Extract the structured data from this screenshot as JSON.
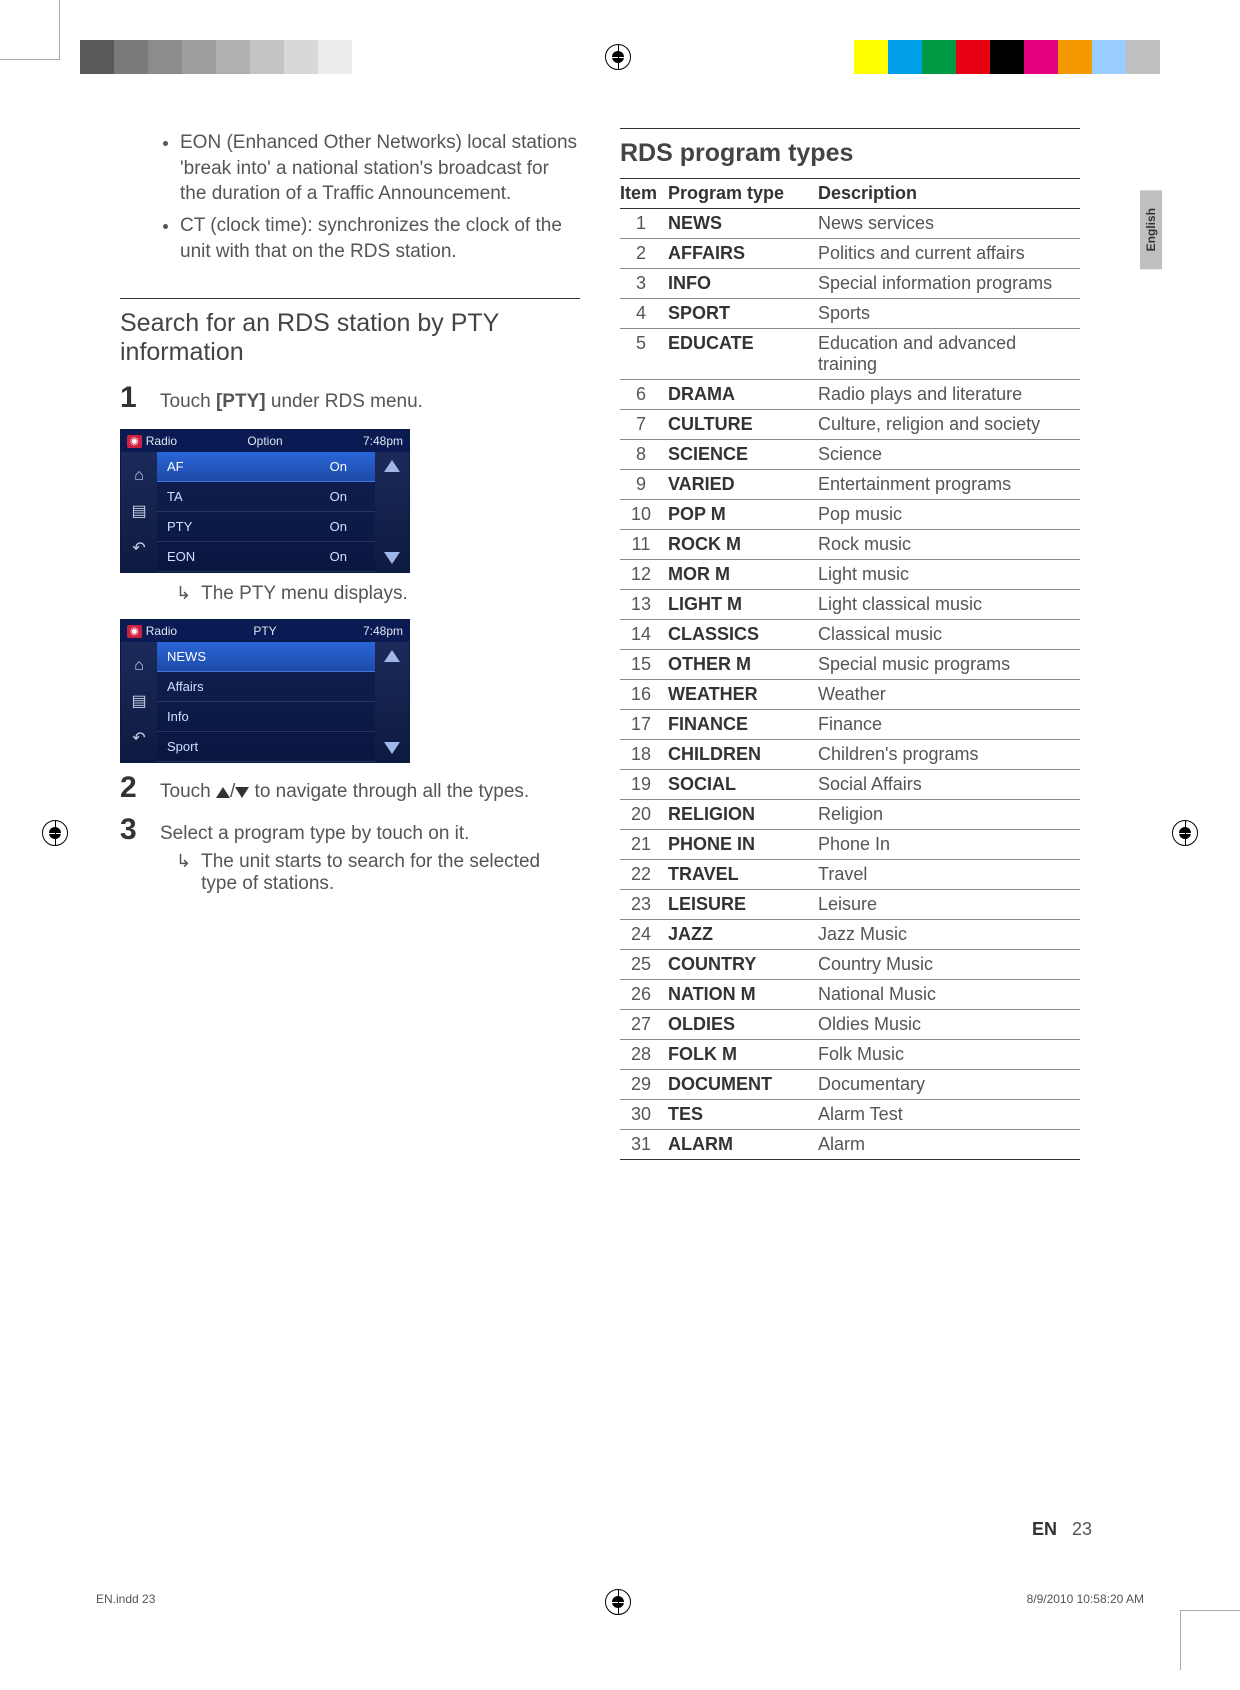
{
  "crop_bars_left": [
    "#595959",
    "#7a7a7a",
    "#8c8c8c",
    "#9e9e9e",
    "#b0b0b0",
    "#c4c4c4",
    "#d8d8d8",
    "#ececec",
    "#ffffff"
  ],
  "crop_bars_right": [
    "#ffffff",
    "#ffff00",
    "#00a0e9",
    "#009944",
    "#e60012",
    "#000000",
    "#e4007f",
    "#f39800",
    "#99ccff",
    "#c0c0c0"
  ],
  "page_language_tab": "English",
  "page_number_label": "EN",
  "page_number": "23",
  "footer_left": "EN.indd   23",
  "footer_right": "8/9/2010   10:58:20 AM",
  "left": {
    "bullet1": "EON (Enhanced Other Networks) local stations 'break into' a national station's broadcast for the duration of a Traffic Announcement.",
    "bullet2": "CT (clock time): synchronizes the clock of the unit with that on the RDS station.",
    "section_title": "Search for an RDS station by PTY information",
    "step1_text_pre": "Touch ",
    "step1_bold": "[PTY]",
    "step1_text_post": " under RDS menu.",
    "pty_menu_note": "The PTY menu displays.",
    "step2_text": "Touch ▲/▼ to navigate through all the types.",
    "step3_text": "Select a program type by touch on it.",
    "step3_sub": "The unit starts to search for the selected type of stations.",
    "device1": {
      "title_tag": "📻",
      "title": "Radio",
      "center": "Option",
      "time": "7:48pm",
      "rows": [
        {
          "label": "AF",
          "val": "On",
          "sel": true
        },
        {
          "label": "TA",
          "val": "On",
          "sel": false
        },
        {
          "label": "PTY",
          "val": "On",
          "sel": false
        },
        {
          "label": "EON",
          "val": "On",
          "sel": false
        }
      ]
    },
    "device2": {
      "title_tag": "📻",
      "title": "Radio",
      "center": "PTY",
      "time": "7:48pm",
      "rows": [
        {
          "label": "NEWS",
          "sel": true
        },
        {
          "label": "Affairs",
          "sel": false
        },
        {
          "label": "Info",
          "sel": false
        },
        {
          "label": "Sport",
          "sel": false
        }
      ]
    }
  },
  "right": {
    "title": "RDS program types",
    "headers": {
      "item": "Item",
      "ptype": "Program type",
      "desc": "Description"
    },
    "rows": [
      {
        "n": "1",
        "t": "NEWS",
        "d": "News services"
      },
      {
        "n": "2",
        "t": "AFFAIRS",
        "d": "Politics and current affairs"
      },
      {
        "n": "3",
        "t": "INFO",
        "d": "Special information programs"
      },
      {
        "n": "4",
        "t": "SPORT",
        "d": "Sports"
      },
      {
        "n": "5",
        "t": "EDUCATE",
        "d": "Education and advanced training"
      },
      {
        "n": "6",
        "t": "DRAMA",
        "d": "Radio plays and literature"
      },
      {
        "n": "7",
        "t": "CULTURE",
        "d": "Culture, religion and society"
      },
      {
        "n": "8",
        "t": "SCIENCE",
        "d": "Science"
      },
      {
        "n": "9",
        "t": "VARIED",
        "d": "Entertainment programs"
      },
      {
        "n": "10",
        "t": "POP M",
        "d": "Pop music"
      },
      {
        "n": "11",
        "t": "ROCK M",
        "d": "Rock music"
      },
      {
        "n": "12",
        "t": "MOR M",
        "d": "Light music"
      },
      {
        "n": "13",
        "t": "LIGHT M",
        "d": "Light classical music"
      },
      {
        "n": "14",
        "t": "CLASSICS",
        "d": "Classical music"
      },
      {
        "n": "15",
        "t": "OTHER M",
        "d": "Special music programs"
      },
      {
        "n": "16",
        "t": "WEATHER",
        "d": "Weather"
      },
      {
        "n": "17",
        "t": "FINANCE",
        "d": "Finance"
      },
      {
        "n": "18",
        "t": "CHILDREN",
        "d": "Children's programs"
      },
      {
        "n": "19",
        "t": "SOCIAL",
        "d": "Social Affairs"
      },
      {
        "n": "20",
        "t": "RELIGION",
        "d": "Religion"
      },
      {
        "n": "21",
        "t": "PHONE IN",
        "d": "Phone In"
      },
      {
        "n": "22",
        "t": "TRAVEL",
        "d": "Travel"
      },
      {
        "n": "23",
        "t": "LEISURE",
        "d": "Leisure"
      },
      {
        "n": "24",
        "t": "JAZZ",
        "d": "Jazz Music"
      },
      {
        "n": "25",
        "t": "COUNTRY",
        "d": "Country Music"
      },
      {
        "n": "26",
        "t": "NATION M",
        "d": "National Music"
      },
      {
        "n": "27",
        "t": "OLDIES",
        "d": "Oldies Music"
      },
      {
        "n": "28",
        "t": "FOLK M",
        "d": "Folk Music"
      },
      {
        "n": "29",
        "t": "DOCUMENT",
        "d": "Documentary"
      },
      {
        "n": "30",
        "t": "TES",
        "d": "Alarm Test"
      },
      {
        "n": "31",
        "t": "ALARM",
        "d": "Alarm"
      }
    ]
  }
}
